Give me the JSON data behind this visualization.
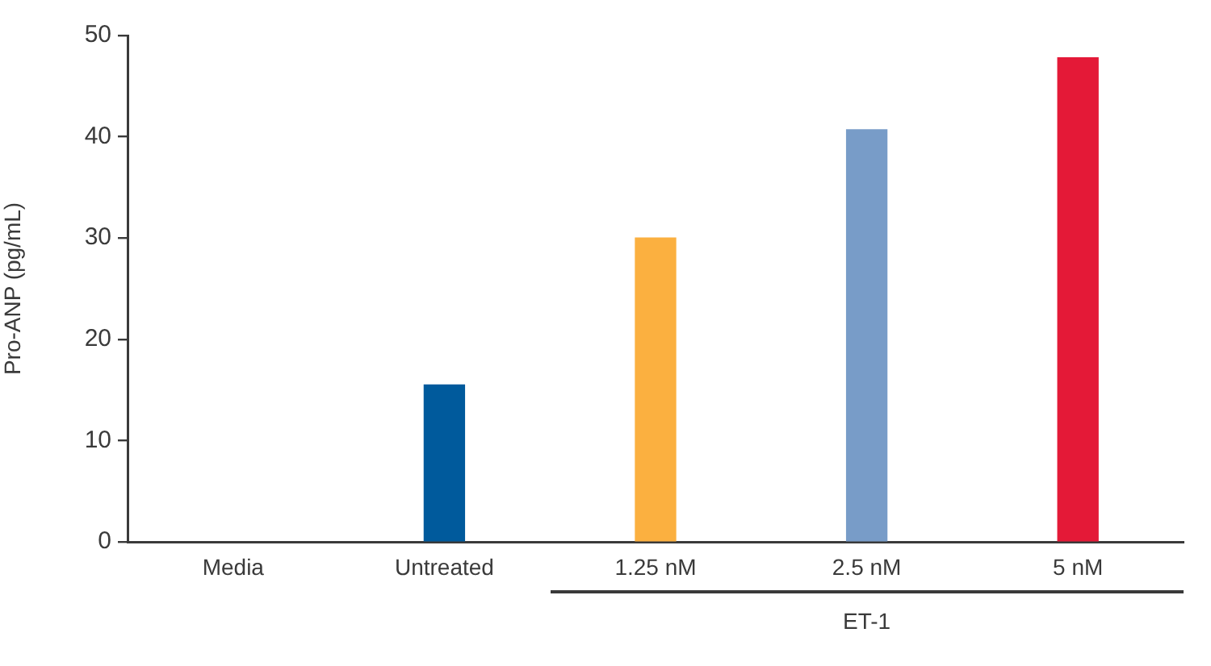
{
  "chart_data": {
    "type": "bar",
    "ylabel": "Pro-ANP (pg/mL)",
    "categories": [
      "Media",
      "Untreated",
      "1.25 nM",
      "2.5 nM",
      "5 nM"
    ],
    "values": [
      null,
      15.5,
      30,
      40.7,
      47.8
    ],
    "colors": [
      null,
      "#005a9c",
      "#fbb040",
      "#789cc8",
      "#e41937"
    ],
    "ylim": [
      0,
      50
    ],
    "yticks": [
      0,
      10,
      20,
      30,
      40,
      50
    ],
    "annotations": [
      "ET-1"
    ]
  }
}
